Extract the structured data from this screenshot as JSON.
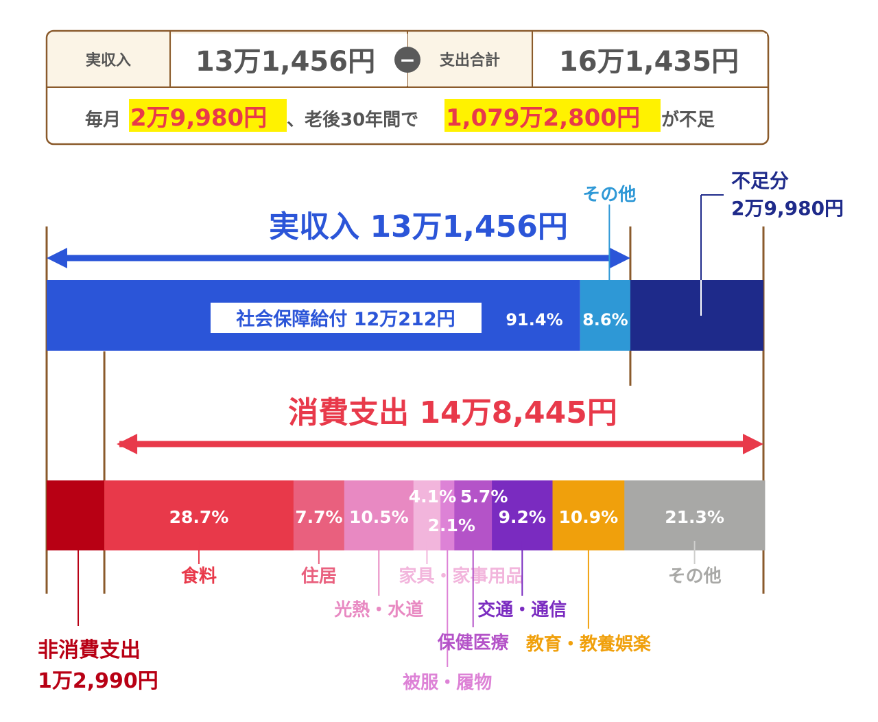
{
  "summary": {
    "income_label": "実収入",
    "income_value": "13万1,456円",
    "minus_sign": "−",
    "expense_label": "支出合計",
    "expense_value": "16万1,435円",
    "shortfall_prefix": "毎月",
    "shortfall_monthly": "2万9,980円",
    "shortfall_middle": "、老後30年間で",
    "shortfall_total": "1,079万2,800円",
    "shortfall_suffix": "が不足"
  },
  "colors": {
    "frame": "#8a5a2b",
    "header_bg": "#fbf4e6",
    "highlight": "#fff200",
    "accent_red": "#e8394a",
    "blue": "#2b55d8",
    "navy": "#1e2a8a",
    "light_blue": "#2e98d6",
    "dark_red": "#b80014"
  },
  "chart_data": {
    "type": "bar",
    "income_bar": {
      "title": "実収入 13万1,456円",
      "segments": [
        {
          "label": "社会保障給付 12万212円",
          "pct_label": "91.4%",
          "share": 91.4,
          "color": "#2b55d8"
        },
        {
          "label": "その他",
          "pct_label": "8.6%",
          "share": 8.6,
          "color": "#2e98d6"
        }
      ],
      "shortfall": {
        "label": "不足分",
        "value": "2万9,980円",
        "amount": 29980,
        "color": "#1e2a8a"
      }
    },
    "expense_bar": {
      "title": "消費支出 14万8,445円",
      "non_consumption": {
        "label": "非消費支出",
        "value": "1万2,990円",
        "amount": 12990,
        "color": "#b80014"
      },
      "segments": [
        {
          "label": "食料",
          "pct_label": "28.7%",
          "share": 28.7,
          "color": "#e8394a"
        },
        {
          "label": "住居",
          "pct_label": "7.7%",
          "share": 7.7,
          "color": "#e9607e"
        },
        {
          "label": "光熱・水道",
          "pct_label": "10.5%",
          "share": 10.5,
          "color": "#e889c2"
        },
        {
          "label": "家具・家事用品",
          "pct_label": "4.1%",
          "share": 4.1,
          "color": "#f2b5dc"
        },
        {
          "label": "被服・履物",
          "pct_label": "2.1%",
          "share": 2.1,
          "color": "#dd82d6"
        },
        {
          "label": "保健医療",
          "pct_label": "5.7%",
          "share": 5.7,
          "color": "#b453c8"
        },
        {
          "label": "交通・通信",
          "pct_label": "9.2%",
          "share": 9.2,
          "color": "#7a2bc0"
        },
        {
          "label": "教育・教養娯楽",
          "pct_label": "10.9%",
          "share": 10.9,
          "color": "#f0a00c"
        },
        {
          "label": "その他",
          "pct_label": "21.3%",
          "share": 21.3,
          "color": "#a8a8a6"
        }
      ]
    },
    "income_total": 131456,
    "consumption_total": 148445,
    "expense_total": 161435
  }
}
